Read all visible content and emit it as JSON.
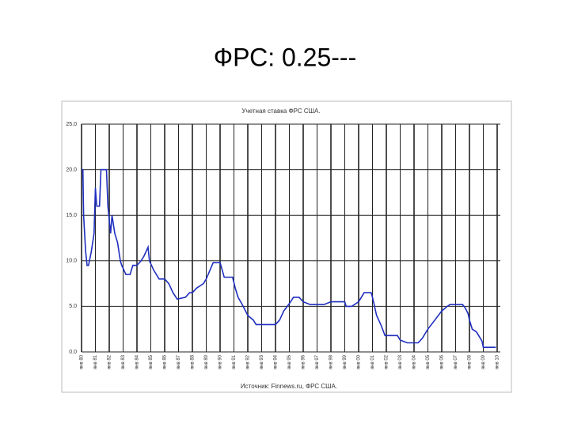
{
  "slide_title": "ФРС: 0.25---",
  "chart_data": {
    "type": "line",
    "title": "Учетная ставка ФРС США.",
    "source": "Источник: Finnews.ru, ФРС США.",
    "x": [
      1980.0,
      1980.1,
      1980.15,
      1980.3,
      1980.4,
      1980.5,
      1980.7,
      1980.9,
      1981.0,
      1981.1,
      1981.3,
      1981.4,
      1981.8,
      1981.9,
      1982.1,
      1982.2,
      1982.4,
      1982.6,
      1982.8,
      1982.9,
      1983.2,
      1983.5,
      1983.7,
      1984.0,
      1984.3,
      1984.5,
      1984.8,
      1984.9,
      1985.2,
      1985.6,
      1986.0,
      1986.3,
      1986.6,
      1986.9,
      1987.5,
      1987.8,
      1988.0,
      1988.3,
      1988.8,
      1989.0,
      1989.5,
      1990.0,
      1990.3,
      1990.9,
      1991.1,
      1991.3,
      1991.6,
      1992.0,
      1992.4,
      1992.6,
      1994.0,
      1994.3,
      1994.6,
      1995.0,
      1995.3,
      1995.7,
      1996.0,
      1996.5,
      1997.5,
      1998.0,
      1999.0,
      1999.1,
      1999.5,
      2000.0,
      2000.4,
      2000.9,
      2001.0,
      2001.3,
      2001.6,
      2001.9,
      2002.8,
      2003.0,
      2003.5,
      2004.3,
      2004.6,
      2005.0,
      2005.5,
      2006.0,
      2006.4,
      2006.6,
      2007.5,
      2007.7,
      2007.9,
      2008.0,
      2008.2,
      2008.5,
      2008.9,
      2009.0,
      2009.9
    ],
    "series": [
      {
        "name": "Учетная ставка",
        "color": "#1f2fbf",
        "values": [
          20,
          20,
          15,
          11,
          9.5,
          9.5,
          11,
          13,
          18,
          16,
          16,
          20,
          20,
          16,
          13,
          15,
          13,
          12,
          10,
          9.5,
          8.5,
          8.5,
          9.5,
          9.5,
          10,
          10.5,
          11.5,
          10,
          9,
          8,
          8,
          7.5,
          6.5,
          5.8,
          6,
          6.5,
          6.5,
          7,
          7.5,
          8,
          9.8,
          9.8,
          8.2,
          8.2,
          7,
          6,
          5.2,
          4,
          3.5,
          3,
          3,
          3.5,
          4.5,
          5.3,
          6,
          6,
          5.5,
          5.2,
          5.2,
          5.5,
          5.5,
          5,
          5,
          5.5,
          6.5,
          6.5,
          6,
          4,
          3,
          1.8,
          1.8,
          1.3,
          1,
          1,
          1.5,
          2.5,
          3.5,
          4.5,
          5,
          5.2,
          5.2,
          4.8,
          4.2,
          3.5,
          2.5,
          2.2,
          1.2,
          0.5,
          0.5
        ]
      }
    ],
    "xlim": [
      1980,
      2010
    ],
    "xticks": [
      {
        "value": 1980,
        "label": "янв 80"
      },
      {
        "value": 1981,
        "label": "янв 81"
      },
      {
        "value": 1982,
        "label": "янв 82"
      },
      {
        "value": 1983,
        "label": "янв 83"
      },
      {
        "value": 1984,
        "label": "янв 84"
      },
      {
        "value": 1985,
        "label": "янв 85"
      },
      {
        "value": 1986,
        "label": "янв 86"
      },
      {
        "value": 1987,
        "label": "янв 87"
      },
      {
        "value": 1988,
        "label": "янв 88"
      },
      {
        "value": 1989,
        "label": "янв 89"
      },
      {
        "value": 1990,
        "label": "янв 90"
      },
      {
        "value": 1991,
        "label": "янв 91"
      },
      {
        "value": 1992,
        "label": "янв 92"
      },
      {
        "value": 1993,
        "label": "янв 93"
      },
      {
        "value": 1994,
        "label": "янв 94"
      },
      {
        "value": 1995,
        "label": "янв 95"
      },
      {
        "value": 1996,
        "label": "янв 96"
      },
      {
        "value": 1997,
        "label": "янв 97"
      },
      {
        "value": 1998,
        "label": "янв 98"
      },
      {
        "value": 1999,
        "label": "янв 99"
      },
      {
        "value": 2000,
        "label": "янв 00"
      },
      {
        "value": 2001,
        "label": "янв 01"
      },
      {
        "value": 2002,
        "label": "янв 02"
      },
      {
        "value": 2003,
        "label": "янв 03"
      },
      {
        "value": 2004,
        "label": "янв 04"
      },
      {
        "value": 2005,
        "label": "янв 05"
      },
      {
        "value": 2006,
        "label": "янв 06"
      },
      {
        "value": 2007,
        "label": "янв 07"
      },
      {
        "value": 2008,
        "label": "янв 08"
      },
      {
        "value": 2009,
        "label": "янв 09"
      },
      {
        "value": 2010,
        "label": "янв 10"
      }
    ],
    "ylim": [
      0,
      25
    ],
    "yticks": [
      {
        "value": 0,
        "label": "0.0"
      },
      {
        "value": 5,
        "label": "5.0"
      },
      {
        "value": 10,
        "label": "10.0"
      },
      {
        "value": 15,
        "label": "15.0"
      },
      {
        "value": 20,
        "label": "20.0"
      },
      {
        "value": 25,
        "label": "25.0"
      }
    ],
    "grid": true
  }
}
